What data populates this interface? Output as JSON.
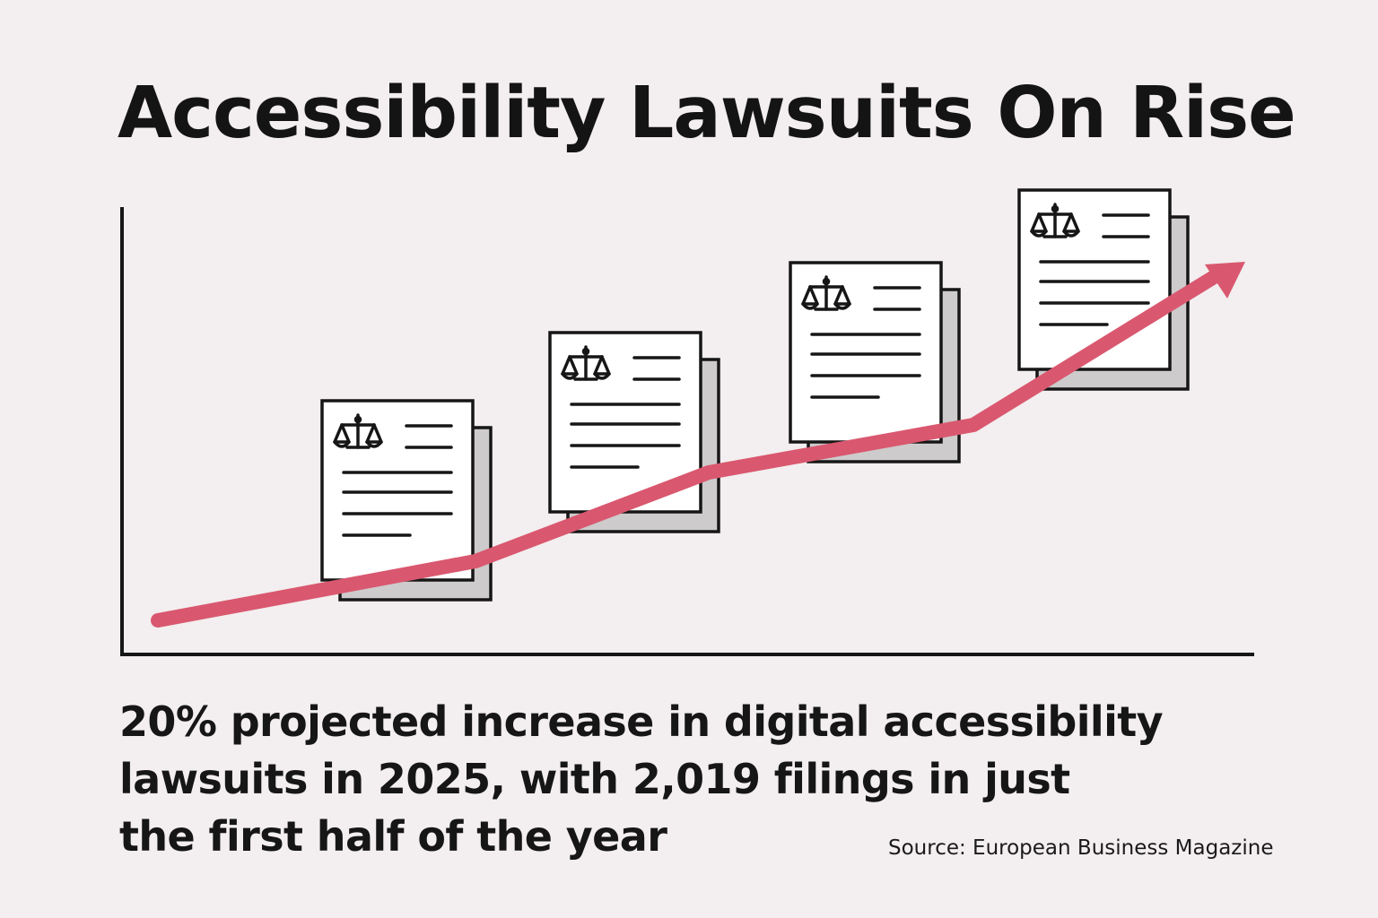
{
  "title": "Accessibility Lawsuits On Rise",
  "caption": {
    "line1": "20% projected increase in digital accessibility",
    "line2": "lawsuits in 2025, with 2,019 filings in just",
    "line3": "the first half of the year"
  },
  "source": "Source: European Business Magazine",
  "icons": {
    "document": "legal-document-icon",
    "scale": "scales-of-justice-icon",
    "trend": "trend-arrow-icon"
  },
  "colors": {
    "background": "#f3eeef",
    "trend_arrow": "#d9586f",
    "document_shadow": "#cdcbcc",
    "ink": "#161616"
  }
}
